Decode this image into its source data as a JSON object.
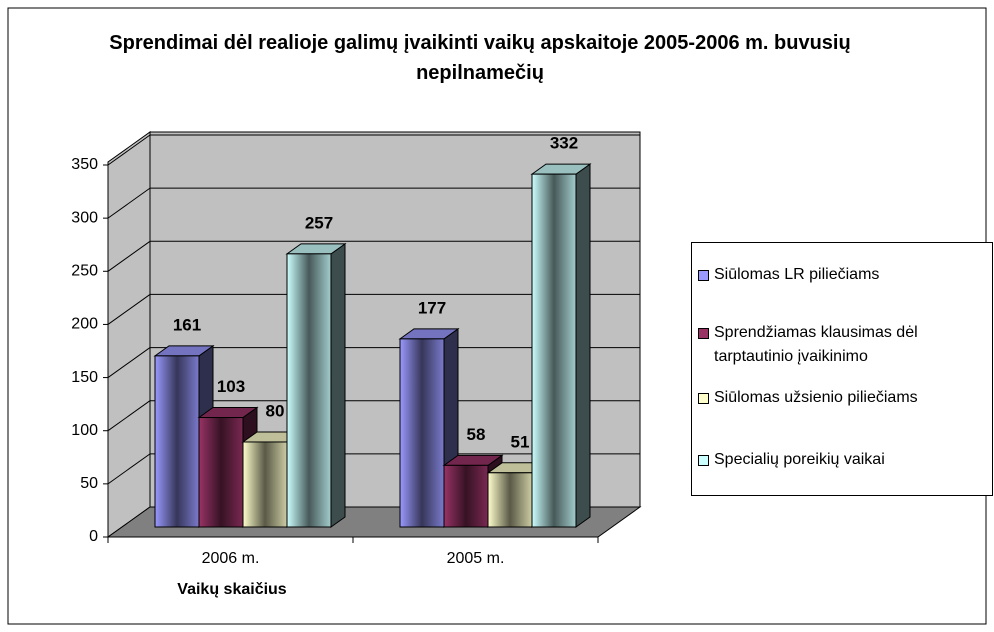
{
  "chart_data": {
    "type": "bar3d",
    "title": "Sprendimai dėl realioje galimų įvaikinti vaikų apskaitoje 2005-2006 m. buvusių nepilnamečių",
    "x_label": "Vaikų skaičius",
    "categories": [
      "2006 m.",
      "2005 m."
    ],
    "series": [
      {
        "name": "Siūlomas LR piliečiams",
        "color": "#9999ff",
        "values": [
          161,
          177
        ]
      },
      {
        "name": "Sprendžiamas klausimas dėl tarptautinio įvaikinimo",
        "color": "#993366",
        "values": [
          103,
          58
        ]
      },
      {
        "name": "Siūlomas užsienio piliečiams",
        "color": "#ffffcc",
        "values": [
          80,
          51
        ]
      },
      {
        "name": "Specialių poreikių vaikai",
        "color": "#ccffff",
        "values": [
          257,
          332
        ]
      }
    ],
    "ylim": [
      0,
      350
    ],
    "yticks": [
      0,
      50,
      100,
      150,
      200,
      250,
      300,
      350
    ],
    "grid": true,
    "legend": "right"
  }
}
